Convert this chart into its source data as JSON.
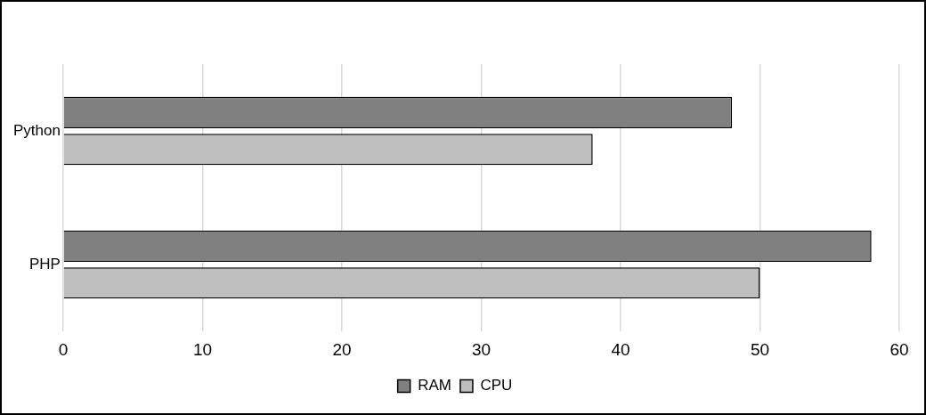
{
  "chart_data": {
    "type": "bar",
    "orientation": "horizontal",
    "categories": [
      "Python",
      "PHP"
    ],
    "series": [
      {
        "name": "RAM",
        "color": "#808080",
        "values": [
          48,
          58
        ]
      },
      {
        "name": "CPU",
        "color": "#bfbfbf",
        "values": [
          38,
          50
        ]
      }
    ],
    "xlim": [
      0,
      60
    ],
    "xticks": [
      0,
      10,
      20,
      30,
      40,
      50,
      60
    ],
    "grid": "x",
    "legend": "bottom"
  }
}
